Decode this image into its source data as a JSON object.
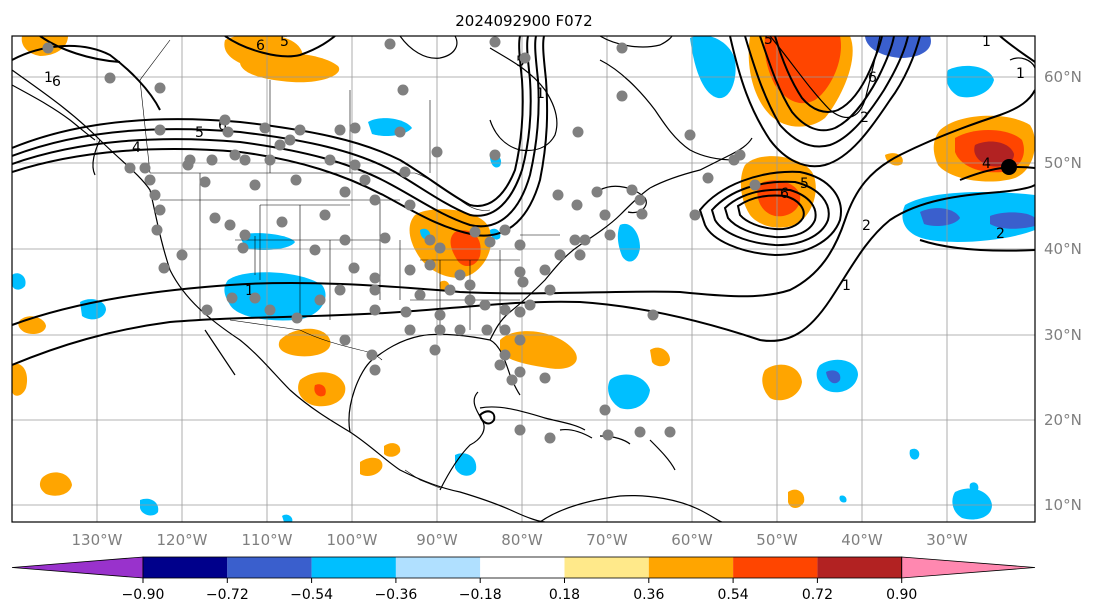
{
  "title": "2024092900 F072",
  "latitude_labels": [
    "60°N",
    "50°N",
    "40°N",
    "30°N",
    "20°N",
    "10°N"
  ],
  "longitude_labels": [
    "130°W",
    "120°W",
    "110°W",
    "100°W",
    "90°W",
    "80°W",
    "70°W",
    "60°W",
    "50°W",
    "40°W",
    "30°W"
  ],
  "colorbar": {
    "ticks": [
      "−0.90",
      "−0.72",
      "−0.54",
      "−0.36",
      "−0.18",
      "0.18",
      "0.36",
      "0.54",
      "0.72",
      "0.90"
    ],
    "colors": [
      "#9932cc",
      "#00008b",
      "#3a5fcd",
      "#00bfff",
      "#b0e0ff",
      "#ffffff",
      "#ffe98a",
      "#ffa500",
      "#ff4500",
      "#b22222",
      "#ff88b0"
    ]
  },
  "contour_labels": [
    "1",
    "2",
    "5",
    "6",
    "5",
    "6",
    "4",
    "1",
    "2",
    "5",
    "6",
    "1",
    "6",
    "5",
    "1",
    "1",
    "2",
    "1",
    "5",
    "6",
    "4"
  ],
  "colors": {
    "positive_light": "#ffa500",
    "positive_mid": "#ff4500",
    "positive_dark": "#b22222",
    "negative_light": "#00bfff",
    "negative_mid": "#3a5fcd",
    "station_marker": "#808080"
  }
}
